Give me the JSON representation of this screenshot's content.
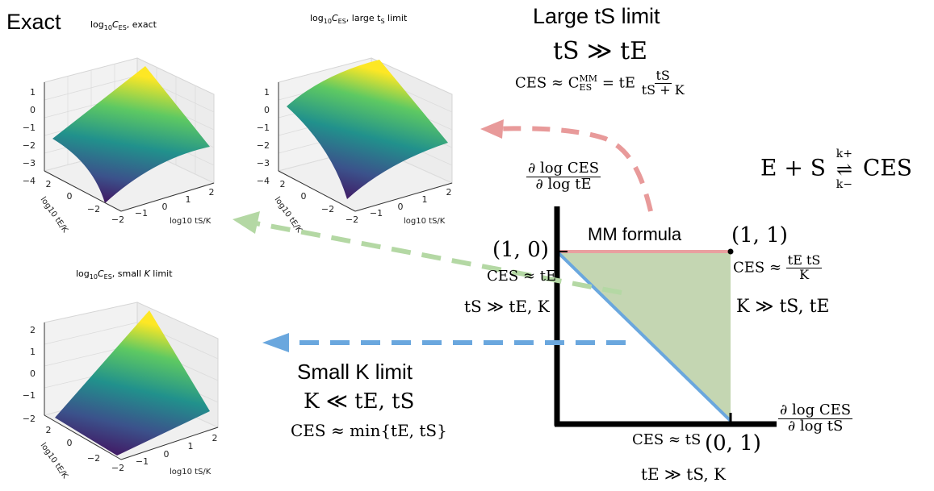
{
  "panels": {
    "exact": {
      "big_label": "Exact",
      "title_prefix": "log",
      "title_sub": "10",
      "title_var": "C",
      "title_varsub": "ES",
      "title_suffix": ", exact",
      "z_ticks": [
        "1",
        "0",
        "−1",
        "−2",
        "−3",
        "−4"
      ],
      "x_ticks": [
        "−2",
        "−1",
        "0",
        "1",
        "2"
      ],
      "y_ticks": [
        "2",
        "0",
        "−2"
      ],
      "x_label": "log10 tS/K",
      "y_label": "log10 tE/K"
    },
    "large_ts": {
      "title_prefix": "log",
      "title_sub": "10",
      "title_var": "C",
      "title_varsub": "ES",
      "title_suffix": ", large t",
      "title_suffix_sub": "S",
      "title_suffix_end": " limit",
      "z_ticks": [
        "1",
        "0",
        "−1",
        "−2",
        "−3",
        "−4"
      ],
      "x_ticks": [
        "−2",
        "−1",
        "0",
        "1",
        "2"
      ],
      "y_ticks": [
        "2",
        "0",
        "−2"
      ],
      "x_label": "log10 tS/K",
      "y_label": "log10 tE/K"
    },
    "small_k": {
      "title_prefix": "log",
      "title_sub": "10",
      "title_var": "C",
      "title_varsub": "ES",
      "title_suffix": ", small ",
      "title_k": "K",
      "title_end": " limit",
      "z_ticks": [
        "2",
        "1",
        "0",
        "−1",
        "−2"
      ],
      "x_ticks": [
        "−2",
        "−1",
        "0",
        "1",
        "2"
      ],
      "y_ticks": [
        "2",
        "0",
        "−2"
      ],
      "x_label": "log10 tS/K",
      "y_label": "log10 tE/K"
    }
  },
  "large_ts_block": {
    "heading": "Large tS limit",
    "condition": "tS ≫ tE",
    "formula_lhs": "CES ≈ C",
    "formula_sup": "MM",
    "formula_sub": "ES",
    "formula_eq": "= tE",
    "frac_num": "tS",
    "frac_den": "tS + K"
  },
  "reaction": {
    "lhs": "E + S",
    "k_plus": "k+",
    "k_minus": "k−",
    "rhs": "CES"
  },
  "small_k_block": {
    "heading": "Small K limit",
    "condition": "K ≪ tE, tS",
    "formula": "CES ≈ min{tE, tS}"
  },
  "phase_diagram": {
    "y_axis_num": "∂ log CES",
    "y_axis_den": "∂ log tE",
    "x_axis_num": "∂ log CES",
    "x_axis_den": "∂ log tS",
    "mm_label": "MM formula",
    "pt_10": "(1, 0)",
    "pt_11": "(1, 1)",
    "pt_01": "(0, 1)",
    "ces_te": "CES ≈ tE",
    "ts_gg": "tS ≫ tE, K",
    "ces_frac_num": "tE tS",
    "ces_frac_den": "K",
    "ces_frac_lhs": "CES ≈",
    "k_gg": "K ≫ tS, tE",
    "ces_ts": "CES ≈ tS",
    "te_gg": "tE ≫ tS, K"
  },
  "colors": {
    "red_arrow": "#e89a9a",
    "green_arrow": "#b4d8a4",
    "blue_arrow": "#6aa7de",
    "green_fill": "#c4d6b2",
    "red_line": "#e9a0a0",
    "blue_line": "#6aa7de"
  }
}
